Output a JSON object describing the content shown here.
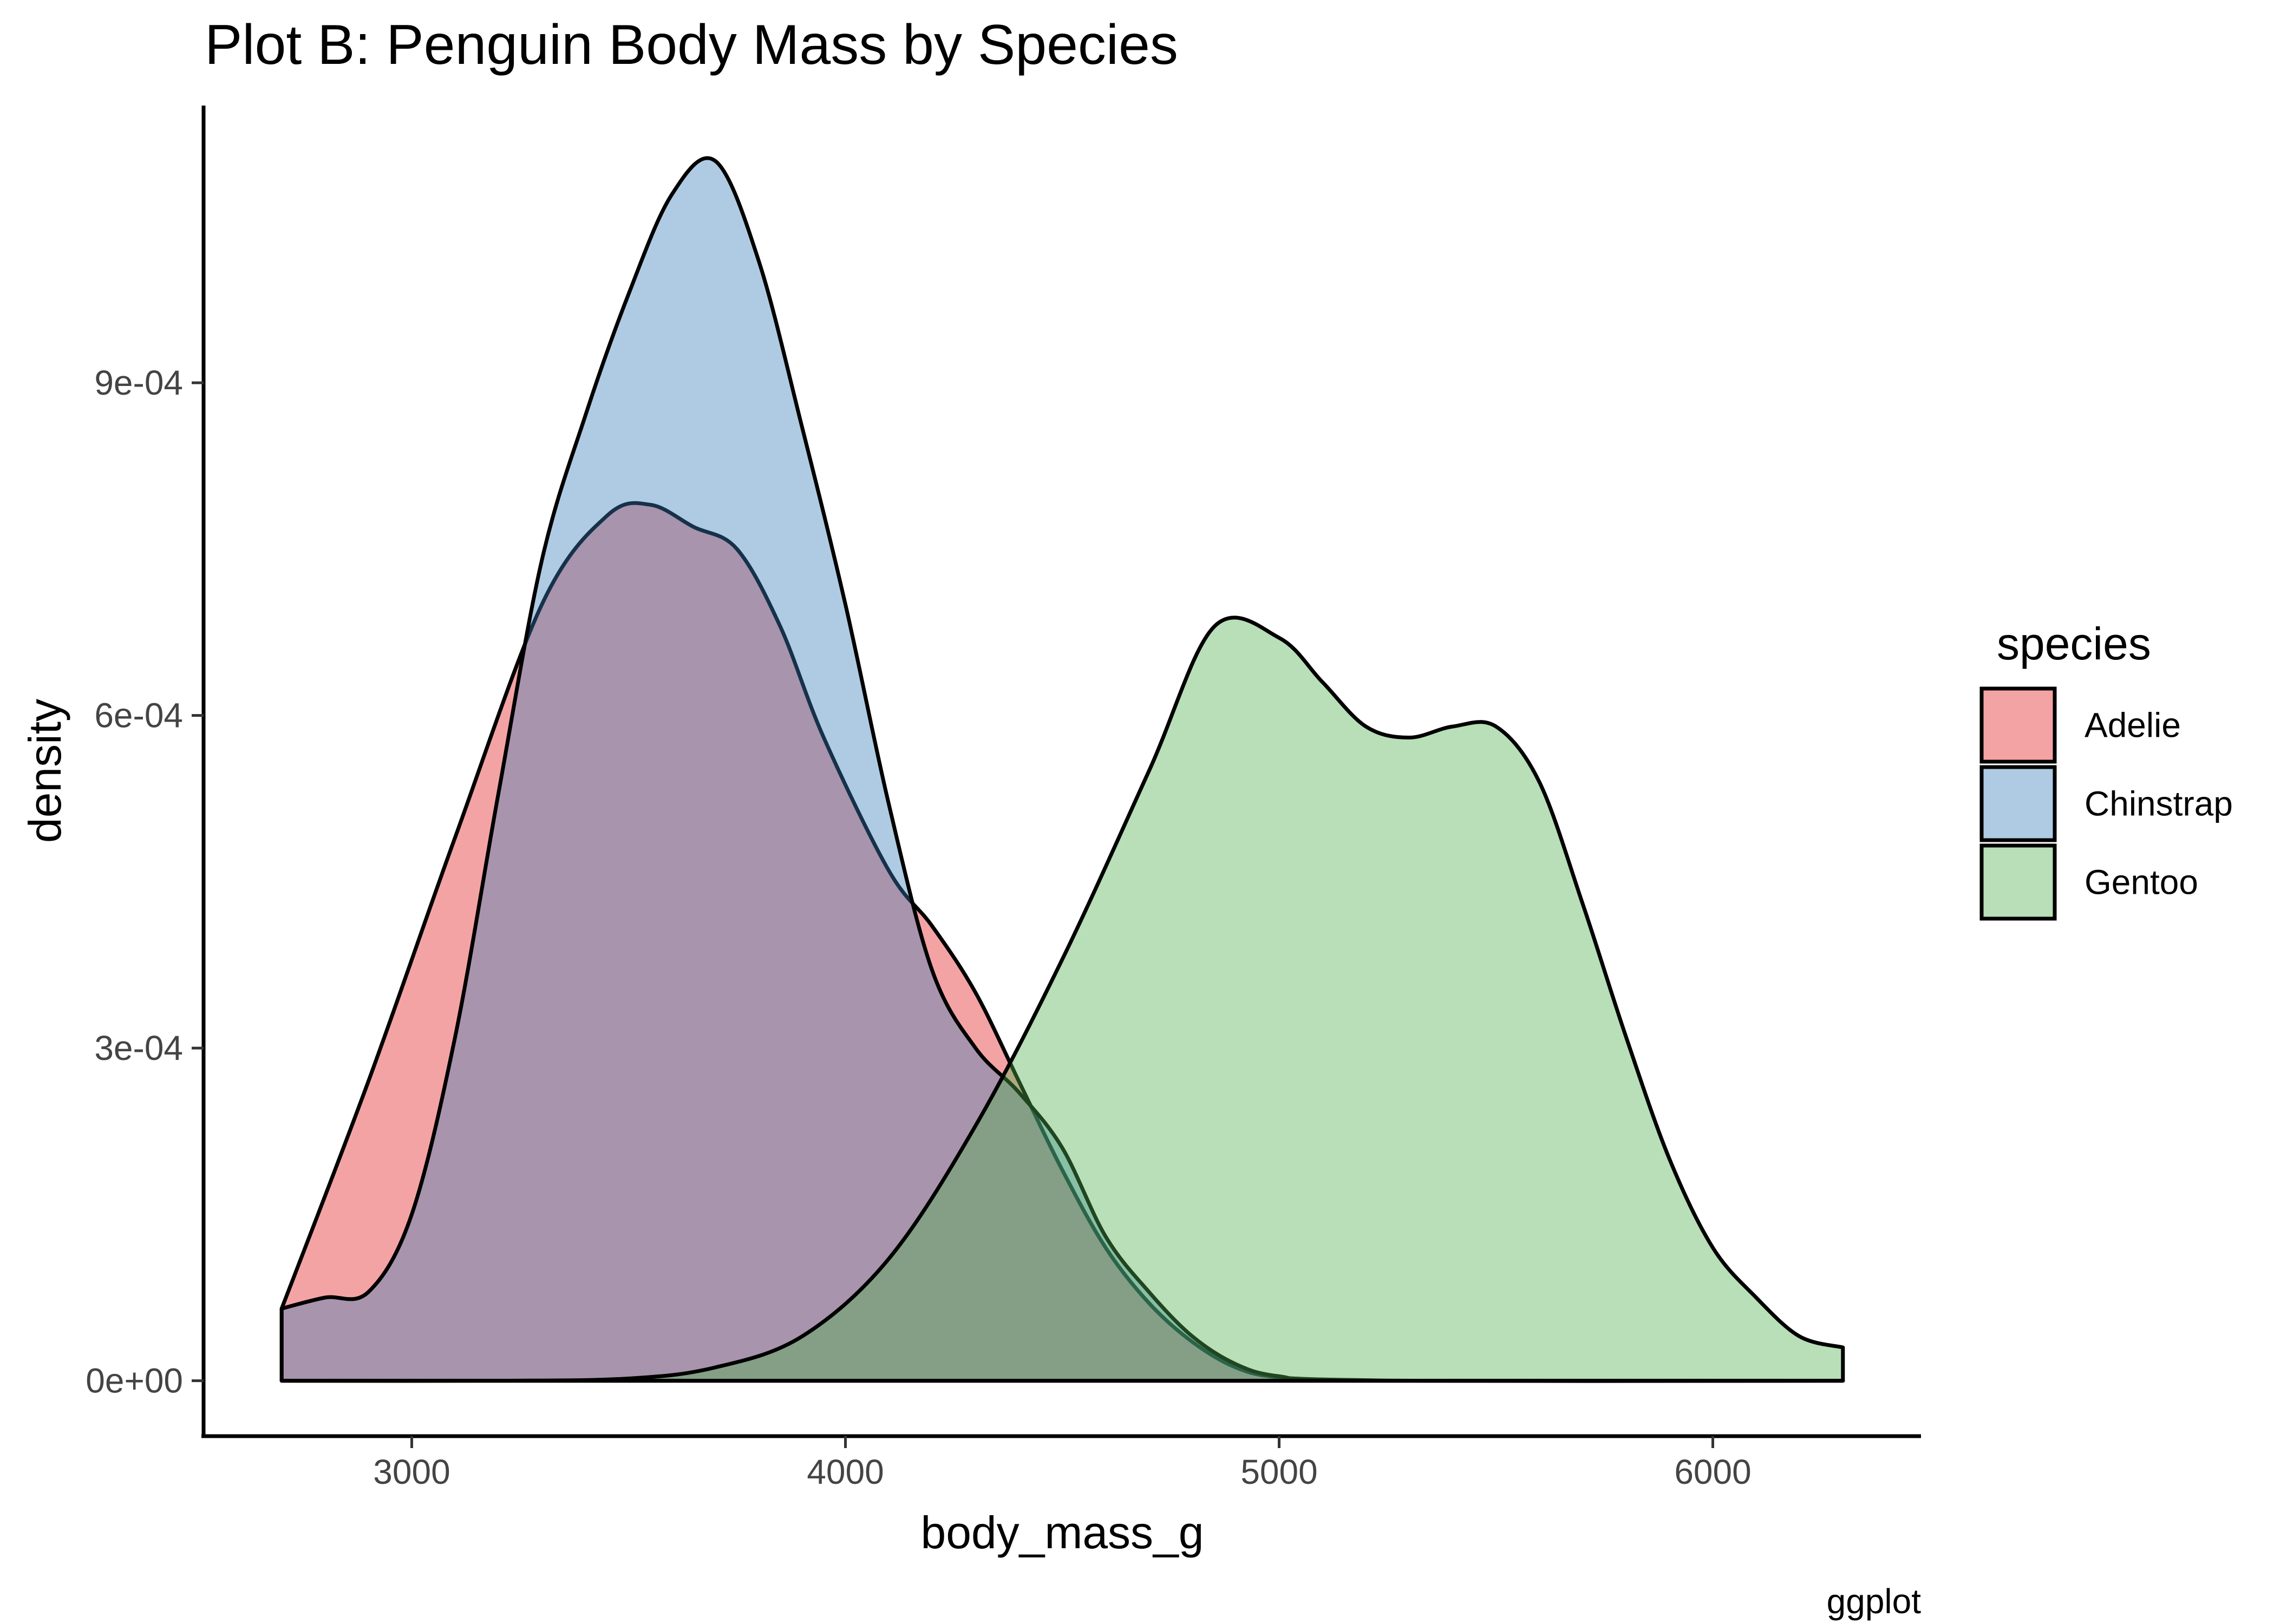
{
  "chart_data": {
    "type": "area",
    "title": "Plot B: Penguin Body Mass by Species",
    "xlabel": "body_mass_g",
    "ylabel": "density",
    "caption": "ggplot",
    "xlim": [
      2520,
      6480
    ],
    "ylim": [
      -5e-05,
      0.00115
    ],
    "x_ticks": [
      3000,
      4000,
      5000,
      6000
    ],
    "x_tick_labels": [
      "3000",
      "4000",
      "5000",
      "6000"
    ],
    "y_ticks": [
      0,
      0.0003,
      0.0006,
      0.0009
    ],
    "y_tick_labels": [
      "0e+00",
      "3e-04",
      "6e-04",
      "9e-04"
    ],
    "grid": false,
    "legend": {
      "title": "species",
      "position": "right"
    },
    "series": [
      {
        "name": "Adelie",
        "color": "#E41A1C",
        "x": [
          2700,
          2900,
          3100,
          3300,
          3450,
          3550,
          3650,
          3750,
          3850,
          3950,
          4100,
          4200,
          4300,
          4400,
          4500,
          4600,
          4700,
          4800,
          4900,
          5000,
          5200,
          5400
        ],
        "y": [
          6.5e-05,
          0.00027,
          0.00049,
          0.0007,
          0.00078,
          0.00079,
          0.00077,
          0.00075,
          0.00068,
          0.00058,
          0.00046,
          0.00041,
          0.00035,
          0.00027,
          0.00019,
          0.00012,
          7e-05,
          3.5e-05,
          1.2e-05,
          3e-06,
          5e-07,
          0
        ]
      },
      {
        "name": "Chinstrap",
        "color": "#377EB8",
        "x": [
          2700,
          2800,
          2900,
          3000,
          3100,
          3200,
          3300,
          3400,
          3500,
          3600,
          3700,
          3800,
          3900,
          4000,
          4100,
          4200,
          4300,
          4400,
          4500,
          4600,
          4700,
          4800,
          4900,
          5000,
          5200
        ],
        "y": [
          6.5e-05,
          7.5e-05,
          8e-05,
          0.00015,
          0.00031,
          0.00053,
          0.00074,
          0.00087,
          0.00098,
          0.00107,
          0.0011,
          0.00101,
          0.00086,
          0.0007,
          0.00052,
          0.00037,
          0.0003,
          0.00026,
          0.00021,
          0.00013,
          8e-05,
          4e-05,
          1.5e-05,
          4e-06,
          0
        ]
      },
      {
        "name": "Gentoo",
        "color": "#4DAF4A",
        "x": [
          2700,
          3200,
          3500,
          3700,
          3900,
          4100,
          4300,
          4500,
          4700,
          4850,
          5000,
          5100,
          5200,
          5300,
          5400,
          5500,
          5600,
          5700,
          5800,
          5900,
          6000,
          6100,
          6200,
          6300
        ],
        "y": [
          0,
          0,
          2e-06,
          1.2e-05,
          4e-05,
          0.00011,
          0.00023,
          0.00038,
          0.00055,
          0.00068,
          0.00067,
          0.00063,
          0.00059,
          0.00058,
          0.00059,
          0.00059,
          0.00054,
          0.00043,
          0.00031,
          0.0002,
          0.00012,
          7.5e-05,
          4e-05,
          3e-05
        ]
      }
    ]
  }
}
